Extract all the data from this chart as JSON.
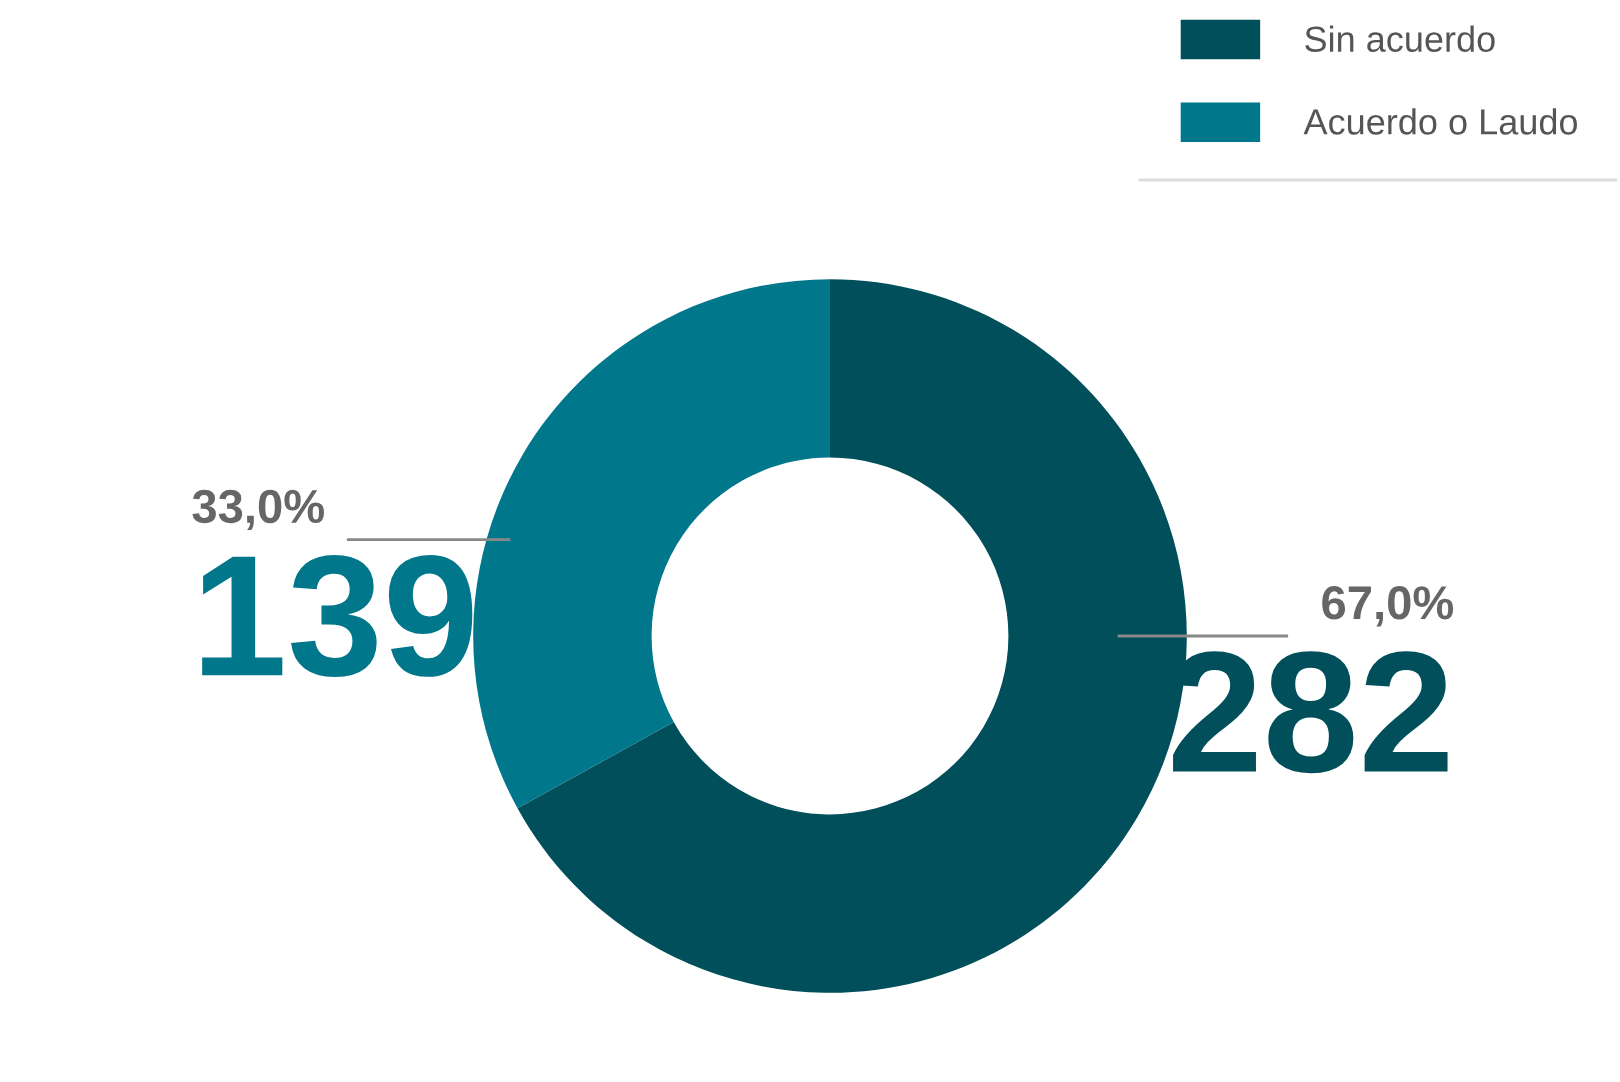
{
  "chart_data": {
    "type": "donut",
    "categories": [
      "Sin acuerdo",
      "Acuerdo o Laudo"
    ],
    "values": [
      282,
      139
    ],
    "colors": [
      "#014f5a",
      "#00778a"
    ],
    "annotations": [
      "67,0%",
      "33,0%"
    ],
    "data_labels": true,
    "legend": "top right"
  }
}
